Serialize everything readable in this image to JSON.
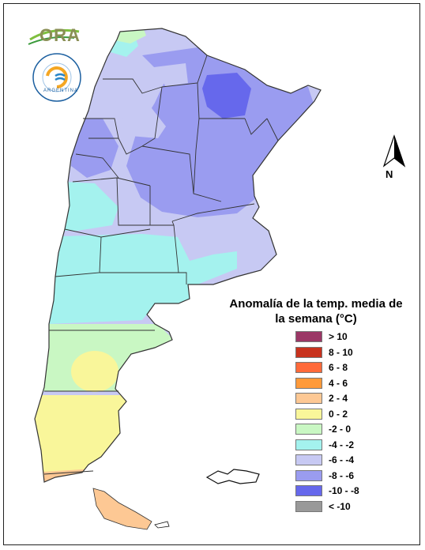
{
  "logos": {
    "ora_text": "ORA",
    "smn_ring_text": "SERVICIO METEOROLÓGICO NACIONAL",
    "smn_country_text": "ARGENTINA"
  },
  "north_arrow": {
    "label": "N"
  },
  "legend": {
    "title": "Anomalía de la temp. media de la semana (°C)",
    "items": [
      {
        "label": "> 10",
        "color": "#9b3766"
      },
      {
        "label": "8 - 10",
        "color": "#c8321e"
      },
      {
        "label": "6 - 8",
        "color": "#ff6a3a"
      },
      {
        "label": "4 - 6",
        "color": "#ff9a3a"
      },
      {
        "label": "2 - 4",
        "color": "#fdc894"
      },
      {
        "label": "0 - 2",
        "color": "#f9f69a"
      },
      {
        "label": "-2 - 0",
        "color": "#c9f7c3"
      },
      {
        "label": "-4 - -2",
        "color": "#a4f2ee"
      },
      {
        "label": "-6 - -4",
        "color": "#c7c9f3"
      },
      {
        "label": "-8 - -6",
        "color": "#9a9cf0"
      },
      {
        "label": "-10 - -8",
        "color": "#6668ec"
      },
      {
        "label": "< -10",
        "color": "#999999"
      }
    ]
  }
}
